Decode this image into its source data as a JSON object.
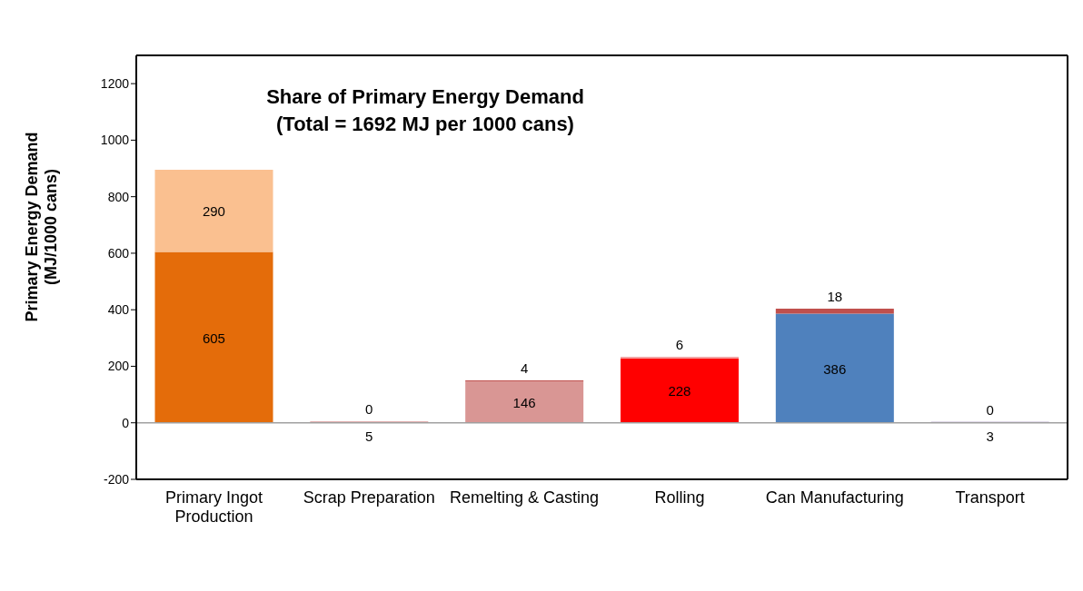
{
  "chart_data": {
    "type": "bar",
    "stacked": true,
    "title": "Share of Primary Energy Demand",
    "subtitle": "(Total = 1692 MJ per 1000 cans)",
    "ylabel": "Primary Energy Demand (MJ/1000 cans)",
    "categories": [
      "Primary Ingot Production",
      "Scrap Preparation",
      "Remelting & Casting",
      "Rolling",
      "Can Manufacturing",
      "Transport"
    ],
    "series": [
      {
        "colors": [
          "#e46c0a",
          "#d99694",
          "#d99694",
          "#ff0000",
          "#4f81bd",
          "#8064a2"
        ],
        "values": [
          605,
          5,
          146,
          228,
          386,
          3
        ]
      },
      {
        "colors": [
          "#fac090",
          "#e6b9b8",
          "#c0504d",
          "#f2a0a0",
          "#c0504d",
          "#8064a2"
        ],
        "values": [
          290,
          0,
          4,
          6,
          18,
          0
        ]
      }
    ],
    "data_labels": true,
    "ylim": [
      -200,
      1300
    ],
    "yticks": [
      -200,
      0,
      200,
      400,
      600,
      800,
      1000,
      1200
    ],
    "grid": false,
    "legend": false,
    "ref_lines": [
      {
        "axis": "y",
        "value": 0,
        "color": "#a0a0a0"
      }
    ]
  }
}
